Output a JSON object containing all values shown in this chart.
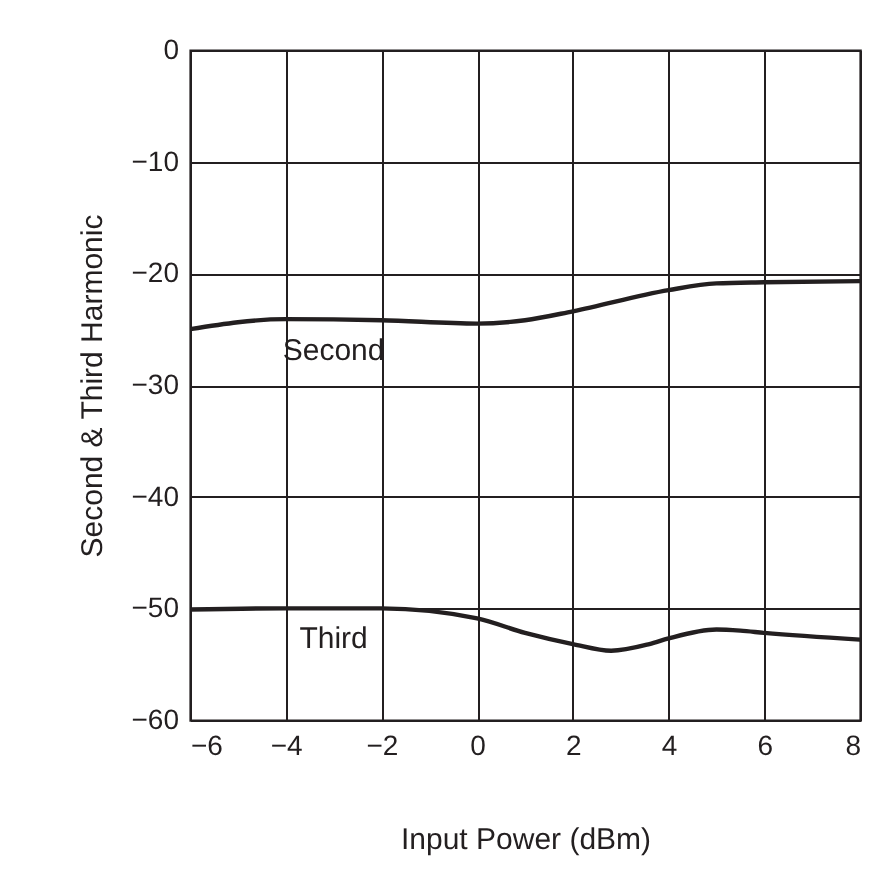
{
  "chart_data": {
    "type": "line",
    "xlabel": "Input Power (dBm)",
    "ylabel": "Second & Third Harmonic",
    "xlim": [
      -6,
      8
    ],
    "xticks": [
      -6,
      -4,
      -2,
      0,
      2,
      4,
      6,
      8
    ],
    "ylim": [
      -60,
      0
    ],
    "yticks": [
      -60,
      -50,
      -40,
      -30,
      -20,
      -10,
      0
    ],
    "grid": true,
    "series": [
      {
        "name": "Second",
        "color": "#231f20",
        "x": [
          -6,
          -4,
          -2,
          0,
          1,
          2,
          4,
          5,
          6,
          8
        ],
        "values": [
          -25.0,
          -24.1,
          -24.2,
          -24.5,
          -24.2,
          -23.4,
          -21.5,
          -20.9,
          -20.8,
          -20.7
        ]
      },
      {
        "name": "Third",
        "color": "#231f20",
        "x": [
          -6,
          -4,
          -2,
          0,
          1,
          2,
          2.8,
          3.6,
          4,
          5,
          5.5,
          6,
          8
        ],
        "values": [
          -50.1,
          -50.0,
          -50.0,
          -50.9,
          -52.2,
          -53.2,
          -53.8,
          -53.2,
          -52.7,
          -51.9,
          -52.0,
          -52.2,
          -52.8
        ]
      }
    ],
    "line_style": "solid"
  }
}
